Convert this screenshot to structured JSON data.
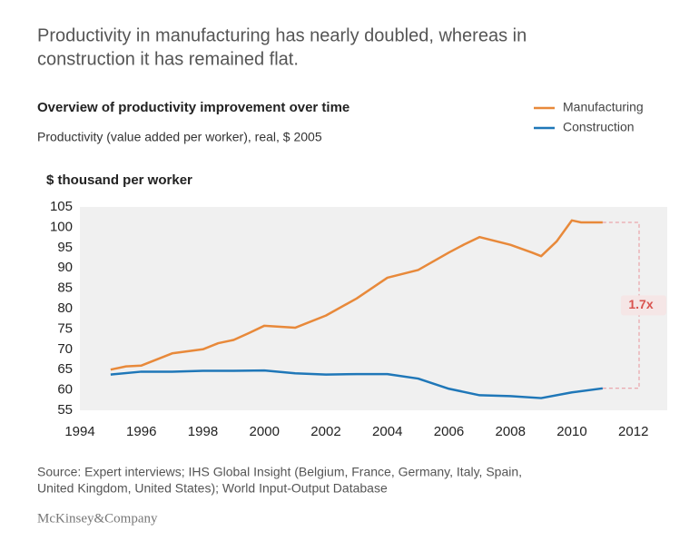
{
  "chart_data": {
    "type": "line",
    "headline": [
      "Productivity in manufacturing has nearly doubled, whereas in",
      "construction it has remained flat."
    ],
    "title": "Overview of productivity improvement over time",
    "subtitle": "Productivity (value added per worker), real, $ 2005",
    "ylabel": "$ thousand per worker",
    "series": [
      {
        "name": "Manufacturing",
        "color": "#e8893a",
        "x": [
          1995,
          1995.5,
          1996,
          1997,
          1998,
          1998.5,
          1999,
          1999.5,
          2000,
          2001,
          2002,
          2003,
          2004,
          2005,
          2006,
          2006.5,
          2007,
          2008,
          2008.7,
          2009,
          2009.5,
          2010,
          2010.3,
          2011
        ],
        "values": [
          65,
          65.8,
          66,
          69,
          70,
          71.5,
          72.3,
          74,
          75.8,
          75.3,
          78.3,
          82.5,
          87.6,
          89.5,
          93.8,
          95.8,
          97.6,
          95.7,
          93.8,
          92.9,
          96.5,
          101.7,
          101.2,
          101.2
        ]
      },
      {
        "name": "Construction",
        "color": "#1f77b8",
        "x": [
          1995,
          1996,
          1997,
          1998,
          1999,
          2000,
          2001,
          2002,
          2003,
          2004,
          2005,
          2006,
          2007,
          2008,
          2009,
          2010,
          2011
        ],
        "values": [
          63.8,
          64.5,
          64.5,
          64.7,
          64.7,
          64.8,
          64.1,
          63.8,
          63.9,
          63.9,
          62.8,
          60.3,
          58.7,
          58.5,
          58.0,
          59.4,
          60.4
        ]
      }
    ],
    "annotation": "1.7x",
    "xlim": [
      1994,
      2013.1
    ],
    "xticks": [
      1994,
      1996,
      1998,
      2000,
      2002,
      2004,
      2006,
      2008,
      2010,
      2012
    ],
    "ylim": [
      55,
      105
    ],
    "yticks": [
      55,
      60,
      65,
      70,
      75,
      80,
      85,
      90,
      95,
      100,
      105
    ],
    "legend": "top-right",
    "source": [
      "Source: Expert interviews; IHS Global Insight (Belgium, France, Germany, Italy, Spain,",
      "United Kingdom, United States); World Input-Output Database"
    ],
    "brand": "McKinsey&Company"
  }
}
